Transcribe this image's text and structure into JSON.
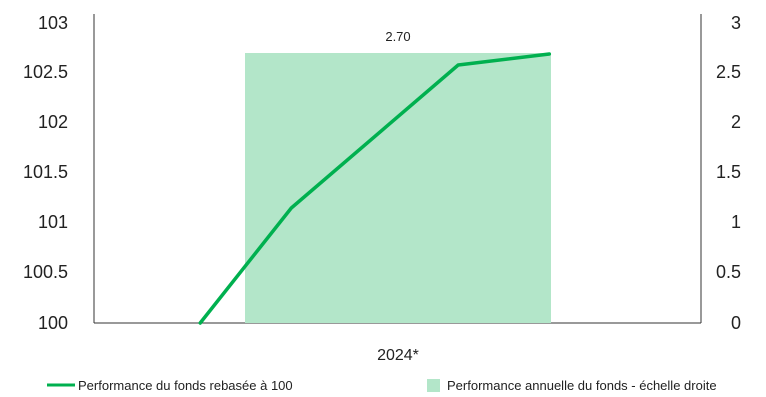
{
  "chart_data": {
    "type": "bar+line",
    "categories": [
      "2024*"
    ],
    "bar_series": {
      "name": "Performance annuelle du fonds - échelle droite",
      "axis": "right",
      "values": [
        2.7
      ],
      "data_labels": [
        "2.70"
      ],
      "color": "#b3e6c9"
    },
    "line_series": {
      "name": "Performance du fonds rebasée à 100",
      "axis": "left",
      "color": "#00b04f",
      "points": [
        {
          "x": -0.15,
          "y": 100.0
        },
        {
          "x": 0.15,
          "y": 101.15
        },
        {
          "x": 0.7,
          "y": 102.58
        },
        {
          "x": 1.0,
          "y": 102.69
        }
      ],
      "x_domain": [
        -0.5,
        1.5
      ]
    },
    "y_left": {
      "min": 100,
      "max": 103,
      "ticks": [
        "100",
        "100.5",
        "101",
        "101.5",
        "102",
        "102.5",
        "103"
      ]
    },
    "y_right": {
      "min": 0,
      "max": 3,
      "ticks": [
        "0",
        "0.5",
        "1",
        "1.5",
        "2",
        "2.5",
        "3"
      ]
    },
    "grid": false,
    "legend_position": "bottom"
  }
}
